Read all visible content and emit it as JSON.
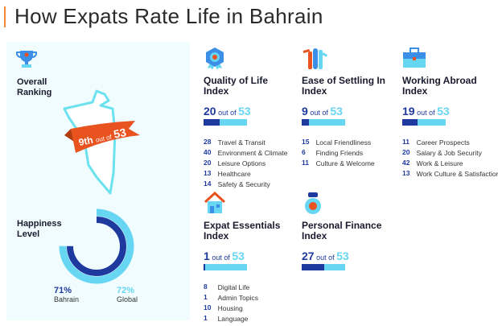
{
  "title": "How Expats Rate Life in Bahrain",
  "colors": {
    "dark_blue": "#1e3a9e",
    "light_blue": "#67d6f3",
    "orange": "#e8531f"
  },
  "overall": {
    "label_line1": "Overall",
    "label_line2": "Ranking",
    "rank": "9th",
    "out_of": "out of",
    "total": "53",
    "icon": "trophy-icon"
  },
  "happiness": {
    "label_line1": "Happiness",
    "label_line2": "Level",
    "bahrain_value": "71%",
    "bahrain_label": "Bahrain",
    "global_value": "72%",
    "global_label": "Global",
    "bahrain_pct": 71,
    "global_pct": 72
  },
  "indices": [
    {
      "id": "quality-of-life",
      "icon": "quality-badge-icon",
      "title_line1": "Quality of Life",
      "title_line2": "Index",
      "rank": 20,
      "out_of": "out of",
      "total": 53,
      "items": [
        {
          "n": "28",
          "t": "Travel & Transit"
        },
        {
          "n": "40",
          "t": "Environment & Climate"
        },
        {
          "n": "20",
          "t": "Leisure Options"
        },
        {
          "n": "13",
          "t": "Healthcare"
        },
        {
          "n": "14",
          "t": "Safety & Security"
        }
      ]
    },
    {
      "id": "ease-of-settling-in",
      "icon": "people-waving-icon",
      "title_line1": "Ease of Settling In",
      "title_line2": "Index",
      "rank": 9,
      "out_of": "out of",
      "total": 53,
      "items": [
        {
          "n": "15",
          "t": "Local Friendliness"
        },
        {
          "n": "6",
          "t": "Finding Friends"
        },
        {
          "n": "11",
          "t": "Culture & Welcome"
        }
      ]
    },
    {
      "id": "working-abroad",
      "icon": "briefcase-icon",
      "title_line1": "Working Abroad",
      "title_line2": "Index",
      "rank": 19,
      "out_of": "out of",
      "total": 53,
      "items": [
        {
          "n": "11",
          "t": "Career Prospects"
        },
        {
          "n": "20",
          "t": "Salary & Job Security"
        },
        {
          "n": "42",
          "t": "Work & Leisure"
        },
        {
          "n": "13",
          "t": "Work Culture & Satisfaction"
        }
      ]
    },
    {
      "id": "expat-essentials",
      "icon": "house-icon",
      "title_line1": "Expat Essentials",
      "title_line2": "Index",
      "rank": 1,
      "out_of": "out of",
      "total": 53,
      "items": [
        {
          "n": "8",
          "t": "Digital Life"
        },
        {
          "n": "1",
          "t": "Admin Topics"
        },
        {
          "n": "10",
          "t": "Housing"
        },
        {
          "n": "1",
          "t": "Language"
        }
      ]
    },
    {
      "id": "personal-finance",
      "icon": "money-bag-icon",
      "title_line1": "Personal Finance",
      "title_line2": "Index",
      "rank": 27,
      "out_of": "out of",
      "total": 53,
      "items": []
    }
  ]
}
